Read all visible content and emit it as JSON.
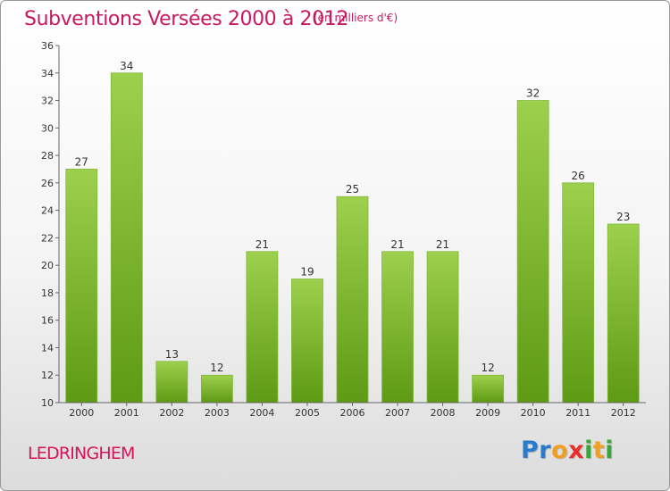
{
  "chart_data": {
    "type": "bar",
    "title": "Subventions Versées 2000 à 2012",
    "subtitle": "(en milliers d'€)",
    "categories": [
      "2000",
      "2001",
      "2002",
      "2003",
      "2004",
      "2005",
      "2006",
      "2007",
      "2008",
      "2009",
      "2010",
      "2011",
      "2012"
    ],
    "values": [
      27,
      34,
      13,
      12,
      21,
      19,
      25,
      21,
      21,
      12,
      32,
      26,
      23
    ],
    "ylim": [
      10,
      36
    ],
    "yticks": [
      10,
      12,
      14,
      16,
      18,
      20,
      22,
      24,
      26,
      28,
      30,
      32,
      34,
      36
    ],
    "grid": false,
    "bar_color_top": "#9dd04d",
    "bar_color_bottom": "#5e9a14"
  },
  "commune_name": "LEDRINGHEM",
  "logo": {
    "letters": [
      "P",
      "r",
      "o",
      "x",
      "i",
      "t",
      "i"
    ],
    "colors": [
      "#2a7bc9",
      "#2a7bc9",
      "#f0a020",
      "#e8302a",
      "#3aa53a",
      "#f0a020",
      "#3aa53a"
    ]
  }
}
